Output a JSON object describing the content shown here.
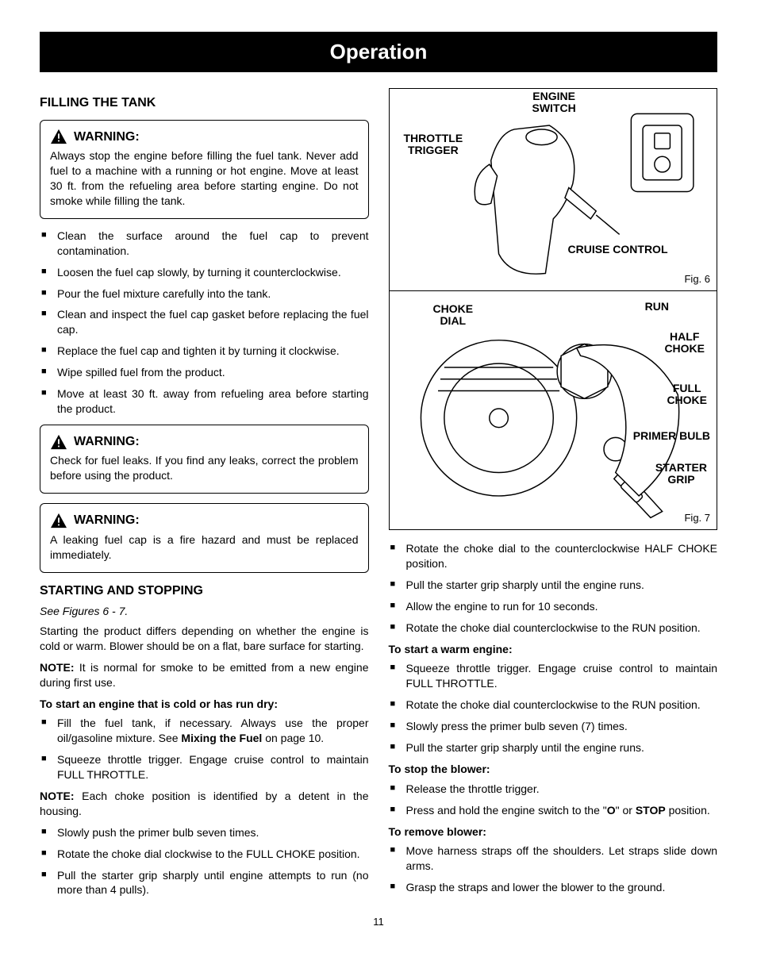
{
  "banner": "Operation",
  "page_number": "11",
  "left": {
    "section1_head": "FILLING THE TANK",
    "warn1_head": "WARNING:",
    "warn1_body": "Always stop the engine before filling the fuel tank. Never add fuel to a machine with a running or hot engine. Move at least 30 ft. from the refueling area before starting engine. Do not smoke while filling the tank.",
    "fill_bullets": [
      "Clean the surface around the fuel cap to prevent contamination.",
      "Loosen the fuel cap slowly, by turning it counterclockwise.",
      "Pour the fuel mixture carefully into the tank.",
      "Clean and inspect the fuel cap gasket before replacing the fuel cap.",
      "Replace the fuel cap and tighten it by turning it clockwise.",
      "Wipe spilled fuel from the product.",
      "Move at least 30 ft. away from refueling area before starting the product."
    ],
    "warn2_head": "WARNING:",
    "warn2_body": "Check for fuel leaks. If you find any leaks, correct the problem before using the product.",
    "warn3_head": "WARNING:",
    "warn3_body": "A leaking fuel cap is a fire hazard and must be replaced immediately.",
    "section2_head": "STARTING AND STOPPING",
    "fig_ref": "See Figures 6 - 7.",
    "start_intro": "Starting the product differs depending on whether the engine is cold or warm. Blower should be on a flat, bare surface for starting.",
    "note1_label": "NOTE:",
    "note1_body": " It is normal for smoke to be emitted from a new engine during first use.",
    "cold_head": "To start an engine that is cold or has run dry:",
    "cold_bullets_a": [
      "Fill the fuel tank, if necessary. Always use the proper oil/gasoline mixture. See ",
      "Squeeze throttle trigger. Engage cruise control to maintain FULL THROTTLE."
    ],
    "mixing_ref": "Mixing the Fuel",
    "mixing_tail": " on page 10.",
    "note2_label": "NOTE:",
    "note2_body": " Each choke position is identified by a detent in the housing.",
    "cold_bullets_b": [
      "Slowly push the primer bulb seven times.",
      "Rotate the choke dial clockwise to the FULL CHOKE position.",
      "Pull the starter grip sharply until engine attempts to run (no more than 4 pulls)."
    ]
  },
  "right": {
    "fig6": {
      "labels": {
        "engine_switch": "ENGINE\nSWITCH",
        "throttle_trigger": "THROTTLE\nTRIGGER",
        "cruise_control": "CRUISE CONTROL"
      },
      "caption": "Fig. 6"
    },
    "fig7": {
      "labels": {
        "choke_dial": "CHOKE\nDIAL",
        "run": "RUN",
        "half_choke": "HALF\nCHOKE",
        "full_choke": "FULL\nCHOKE",
        "primer_bulb": "PRIMER BULB",
        "starter_grip": "STARTER\nGRIP"
      },
      "caption": "Fig. 7"
    },
    "cont_bullets_a": [
      "Rotate the choke dial to the counterclockwise HALF CHOKE position.",
      "Pull the starter grip sharply until the engine runs.",
      "Allow the engine to run for 10 seconds.",
      "Rotate the choke dial counterclockwise to the RUN position."
    ],
    "warm_head": "To start a warm engine:",
    "warm_bullets": [
      "Squeeze throttle trigger. Engage cruise control to maintain FULL THROTTLE.",
      "Rotate the choke dial counterclockwise to the RUN position.",
      "Slowly press the primer bulb seven (7) times.",
      "Pull the starter grip sharply until the engine runs."
    ],
    "stop_head": "To stop the blower:",
    "stop_bullets_pre": "Release the throttle trigger.",
    "stop_bullet2_a": "Press and hold the engine switch to the \"",
    "stop_bullet2_o": "O",
    "stop_bullet2_b": "\" or ",
    "stop_bullet2_stop": "STOP",
    "stop_bullet2_c": " position.",
    "remove_head": "To remove blower:",
    "remove_bullets": [
      "Move harness straps off the shoulders. Let straps slide down arms.",
      "Grasp the straps and lower the blower to the ground."
    ]
  }
}
